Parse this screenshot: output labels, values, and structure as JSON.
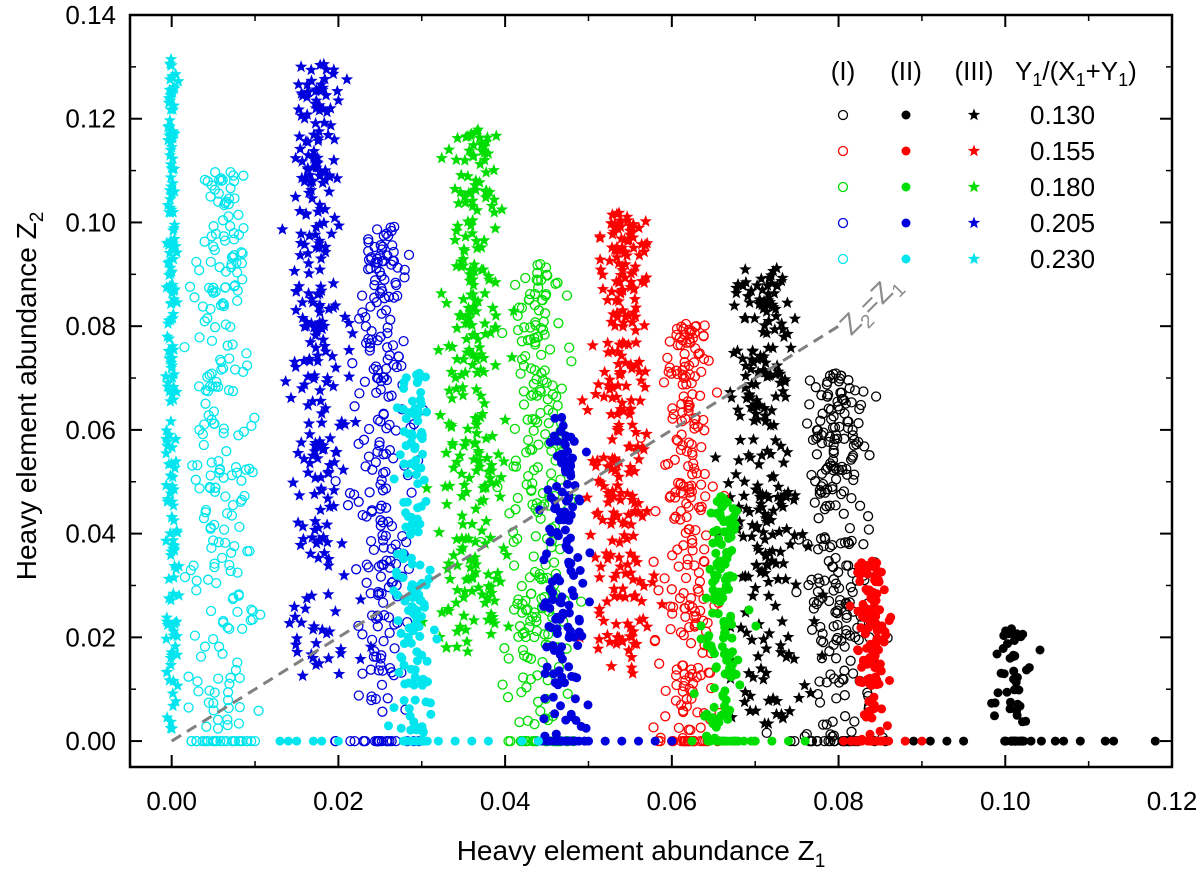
{
  "chart_data": {
    "type": "scatter",
    "xlabel": "Heavy element abundance Z",
    "xlabel_sub": "1",
    "ylabel": "Heavy element abundance Z",
    "ylabel_sub": "2",
    "xlim": [
      -0.005,
      0.12
    ],
    "ylim": [
      -0.005,
      0.14
    ],
    "xticks": [
      "0.00",
      "0.02",
      "0.04",
      "0.06",
      "0.08",
      "0.10",
      "0.12"
    ],
    "yticks": [
      "0.00",
      "0.02",
      "0.04",
      "0.06",
      "0.08",
      "0.10",
      "0.12",
      "0.14"
    ],
    "grid": false,
    "legend_position": "top-right",
    "legend_headers": [
      "(I)",
      "(II)",
      "(III)"
    ],
    "legend_ratio_header": {
      "text": "Y",
      "s1": "1",
      "mid": "/(X",
      "s2": "1",
      "mid2": "+Y",
      "s3": "1",
      "end": ")"
    },
    "reference_line": {
      "label": "Z",
      "label_sub1": "2",
      "eq": "=Z",
      "label_sub2": "1",
      "from": [
        0.0,
        0.0
      ],
      "to": [
        0.08,
        0.08
      ],
      "color": "#808080"
    },
    "groups": [
      {
        "ratio": "0.130",
        "color": "#000000",
        "clouds": [
          {
            "marker": "open-circle",
            "x_center": 0.08,
            "x_spread": 0.0025,
            "y_min": 0.0,
            "y_max": 0.071,
            "n": 240
          },
          {
            "marker": "filled-circle",
            "x_center": 0.101,
            "x_spread": 0.0012,
            "y_min": 0.003,
            "y_max": 0.022,
            "n": 40
          },
          {
            "marker": "star",
            "x_center": 0.071,
            "x_spread": 0.0025,
            "y_min": 0.003,
            "y_max": 0.092,
            "n": 260
          }
        ],
        "floor_points": [
          0.089,
          0.091,
          0.093,
          0.095,
          0.102,
          0.106,
          0.107,
          0.109,
          0.112,
          0.113,
          0.118
        ]
      },
      {
        "ratio": "0.155",
        "color": "#ff0000",
        "clouds": [
          {
            "marker": "open-circle",
            "x_center": 0.062,
            "x_spread": 0.002,
            "y_min": 0.0,
            "y_max": 0.081,
            "n": 230
          },
          {
            "marker": "filled-circle",
            "x_center": 0.084,
            "x_spread": 0.0013,
            "y_min": 0.0,
            "y_max": 0.035,
            "n": 130
          },
          {
            "marker": "star",
            "x_center": 0.054,
            "x_spread": 0.0022,
            "y_min": 0.012,
            "y_max": 0.102,
            "n": 280
          }
        ],
        "floor_points": [
          0.086,
          0.088,
          0.09
        ]
      },
      {
        "ratio": "0.180",
        "color": "#00dd00",
        "clouds": [
          {
            "marker": "open-circle",
            "x_center": 0.044,
            "x_spread": 0.0022,
            "y_min": 0.003,
            "y_max": 0.092,
            "n": 230
          },
          {
            "marker": "filled-circle",
            "x_center": 0.066,
            "x_spread": 0.0015,
            "y_min": 0.0,
            "y_max": 0.048,
            "n": 130
          },
          {
            "marker": "star",
            "x_center": 0.036,
            "x_spread": 0.0025,
            "y_min": 0.017,
            "y_max": 0.118,
            "n": 280
          }
        ],
        "floor_points": [
          0.068,
          0.07,
          0.072,
          0.074,
          0.076
        ]
      },
      {
        "ratio": "0.205",
        "color": "#0000dd",
        "clouds": [
          {
            "marker": "open-circle",
            "x_center": 0.025,
            "x_spread": 0.0022,
            "y_min": 0.004,
            "y_max": 0.1,
            "n": 230
          },
          {
            "marker": "filled-circle",
            "x_center": 0.047,
            "x_spread": 0.0015,
            "y_min": 0.0,
            "y_max": 0.063,
            "n": 150
          },
          {
            "marker": "star",
            "x_center": 0.0175,
            "x_spread": 0.0022,
            "y_min": 0.012,
            "y_max": 0.131,
            "n": 280
          }
        ],
        "floor_points": [
          0.05,
          0.052,
          0.054,
          0.056,
          0.058,
          0.06
        ]
      },
      {
        "ratio": "0.230",
        "color": "#00e5ee",
        "clouds": [
          {
            "marker": "open-circle",
            "x_center": 0.006,
            "x_spread": 0.0022,
            "y_min": 0.002,
            "y_max": 0.11,
            "n": 230
          },
          {
            "marker": "filled-circle",
            "x_center": 0.029,
            "x_spread": 0.0014,
            "y_min": 0.0,
            "y_max": 0.071,
            "n": 150
          },
          {
            "marker": "star",
            "x_center": 0.0,
            "x_spread": 0.0004,
            "y_min": 0.002,
            "y_max": 0.132,
            "n": 200
          }
        ],
        "floor_points": [
          0.013,
          0.014,
          0.015,
          0.017,
          0.018,
          0.02,
          0.032,
          0.034,
          0.036,
          0.038,
          0.042,
          0.044
        ]
      }
    ]
  }
}
